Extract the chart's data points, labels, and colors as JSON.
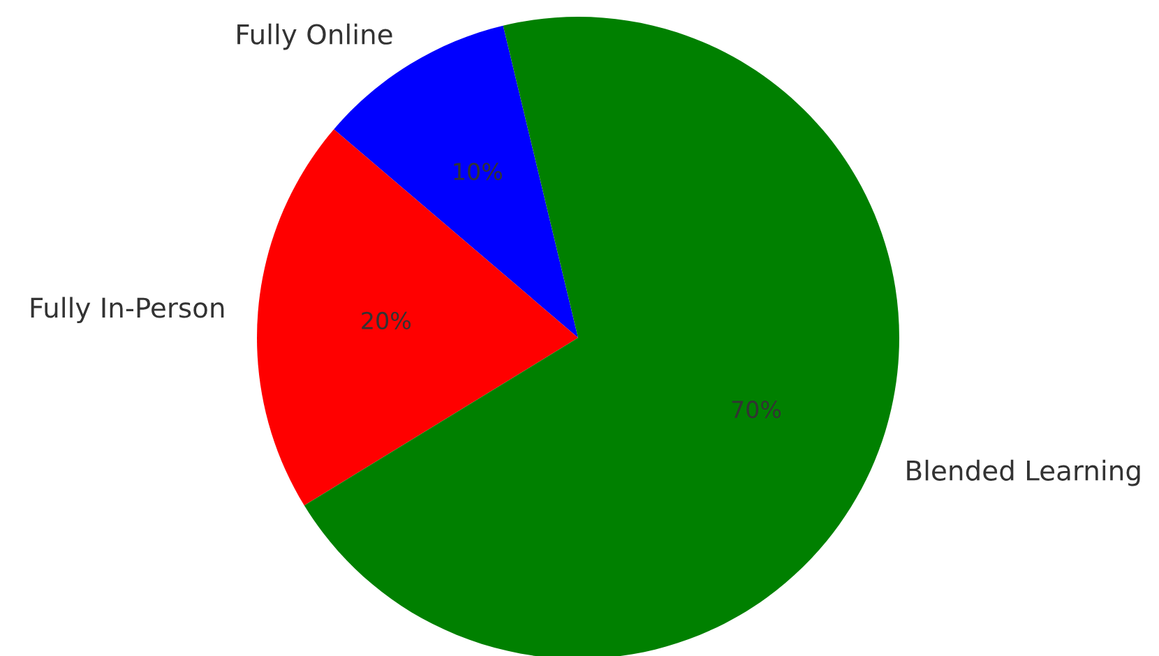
{
  "chart_data": {
    "type": "pie",
    "categories": [
      "Fully Online",
      "Fully In-Person",
      "Blended Learning"
    ],
    "values": [
      10,
      20,
      70
    ],
    "colors": [
      "#0000ff",
      "#ff0000",
      "#008000"
    ],
    "value_labels": [
      "10%",
      "20%",
      "70%"
    ]
  }
}
